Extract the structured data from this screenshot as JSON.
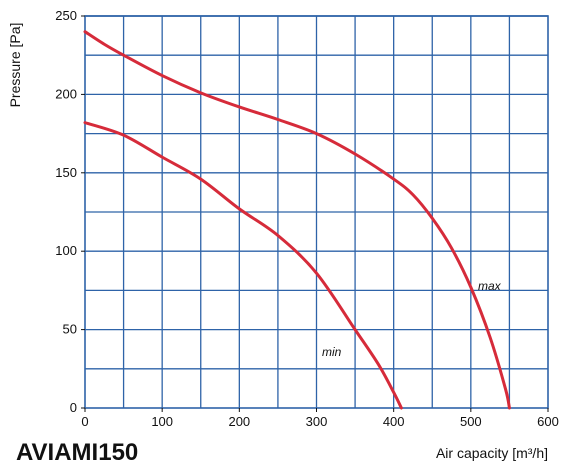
{
  "model_title": "AVIAMI150",
  "chart_data": {
    "type": "line",
    "title": "",
    "xlabel": "Air capacity [m³/h]",
    "ylabel": "Pressure [Pa]",
    "xlim": [
      0,
      600
    ],
    "ylim": [
      0,
      250
    ],
    "x_ticks": [
      0,
      100,
      200,
      300,
      400,
      500,
      600
    ],
    "y_ticks": [
      0,
      50,
      100,
      150,
      200,
      250
    ],
    "grid": true,
    "minor_grid_step_x": 50,
    "minor_grid_step_y": 25,
    "colors": {
      "grid": "#2e63a8",
      "series": "#d62b3a",
      "background": "#ffffff"
    },
    "series": [
      {
        "name": "max",
        "x": [
          0,
          25,
          50,
          100,
          150,
          200,
          250,
          300,
          350,
          400,
          425,
          450,
          475,
          500,
          525,
          545,
          550
        ],
        "y": [
          240,
          232,
          225,
          212,
          201,
          192,
          184,
          175,
          162,
          146,
          136,
          121,
          102,
          77,
          45,
          12,
          0
        ]
      },
      {
        "name": "min",
        "x": [
          0,
          50,
          100,
          150,
          200,
          250,
          300,
          350,
          380,
          400,
          410
        ],
        "y": [
          182,
          174,
          160,
          146,
          127,
          110,
          86,
          50,
          28,
          10,
          0
        ]
      }
    ]
  }
}
